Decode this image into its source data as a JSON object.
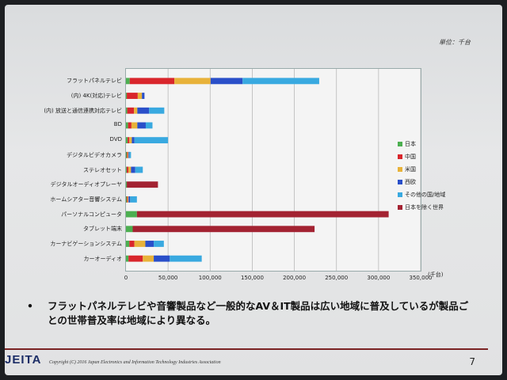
{
  "unit_note": "単位：千台",
  "x_unit": "(千台)",
  "bullet": {
    "mark": "•",
    "text": "フラットパネルテレビや音響製品など一般的なAV＆IT製品は広い地域に普及しているが製品ごとの世帯普及率は地域により異なる。"
  },
  "footer": {
    "logo": "JEITA",
    "copyright": "Copyright (C) 2016 Japan Electronics and Information Technology Industries Association",
    "page": "7"
  },
  "colors": {
    "日本": "#4caf50",
    "中国": "#d9262c",
    "米国": "#e8b23a",
    "西欧": "#2a4fc9",
    "その他の国/地域": "#39a9e0",
    "日本を除く世界": "#a32332"
  },
  "chart_data": {
    "type": "bar",
    "orientation": "horizontal",
    "stacked": true,
    "title": "",
    "xlabel": "(千台)",
    "ylabel": "",
    "xlim": [
      0,
      350000
    ],
    "xticks": [
      0,
      50000,
      100000,
      150000,
      200000,
      250000,
      300000,
      350000
    ],
    "xtick_labels": [
      "0",
      "50,000",
      "100,000",
      "150,000",
      "200,000",
      "250,000",
      "300,000",
      "350,000"
    ],
    "grid": true,
    "legend_position": "right",
    "categories": [
      "フラットパネルテレビ",
      "(内) 4K(対応)テレビ",
      "(内) 放送と通信連携対応テレビ",
      "BD",
      "DVD",
      "デジタルビデオカメラ",
      "ステレオセット",
      "デジタルオーディオプレーヤ",
      "ホームシアター音響システム",
      "パーソナルコンピュータ",
      "タブレット端末",
      "カーナビゲーションシステム",
      "カーオーディオ"
    ],
    "series": [
      {
        "name": "日本",
        "values": [
          4500,
          1000,
          1500,
          2500,
          2000,
          1000,
          1000,
          1000,
          1000,
          13000,
          8000,
          4000,
          3000
        ]
      },
      {
        "name": "中国",
        "values": [
          53000,
          13000,
          8000,
          4000,
          2000,
          1000,
          2000,
          0,
          1000,
          0,
          0,
          6000,
          17000
        ]
      },
      {
        "name": "米国",
        "values": [
          43000,
          5000,
          4000,
          7000,
          3000,
          1000,
          3000,
          0,
          1000,
          0,
          0,
          13000,
          13000
        ]
      },
      {
        "name": "西欧",
        "values": [
          38000,
          3000,
          14000,
          10000,
          3000,
          1000,
          5000,
          0,
          2000,
          0,
          0,
          10000,
          19000
        ]
      },
      {
        "name": "その他の国/地域",
        "values": [
          91000,
          0,
          18000,
          8000,
          40000,
          2000,
          9000,
          0,
          8000,
          0,
          0,
          12000,
          38000
        ]
      },
      {
        "name": "日本を除く世界",
        "values": [
          0,
          0,
          0,
          0,
          0,
          0,
          0,
          37000,
          0,
          299000,
          216000,
          0,
          0
        ]
      }
    ]
  }
}
